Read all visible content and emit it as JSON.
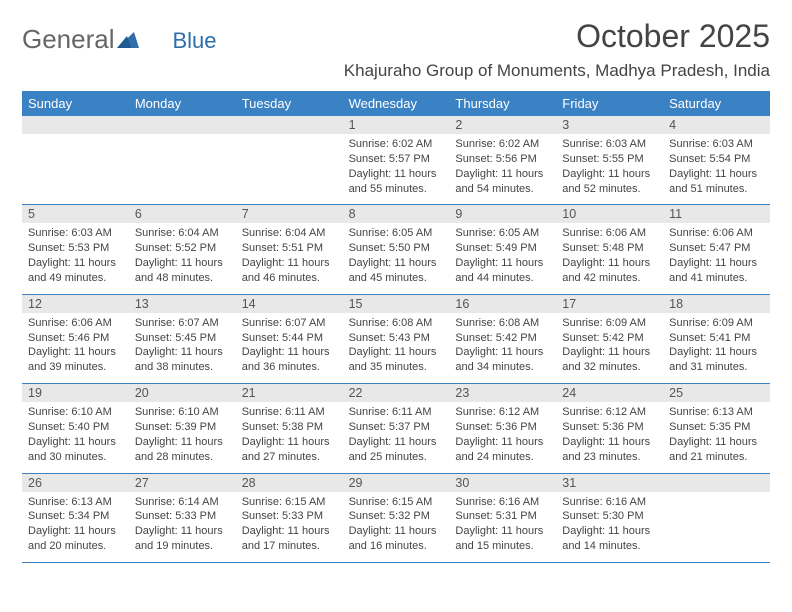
{
  "logo": {
    "part1": "General",
    "part2": "Blue"
  },
  "title": "October 2025",
  "location": "Khajuraho Group of Monuments, Madhya Pradesh, India",
  "colors": {
    "header_bg": "#3a82c4",
    "header_text": "#ffffff",
    "date_bg": "#e8e8e8",
    "rule": "#3a82c4",
    "text": "#3a3a3a",
    "logo_blue": "#2f6ea8"
  },
  "day_labels": [
    "Sunday",
    "Monday",
    "Tuesday",
    "Wednesday",
    "Thursday",
    "Friday",
    "Saturday"
  ],
  "weeks": [
    [
      {
        "blank": true
      },
      {
        "blank": true
      },
      {
        "blank": true
      },
      {
        "d": "1",
        "sr": "6:02 AM",
        "ss": "5:57 PM",
        "dlh": "11",
        "dlm": "55"
      },
      {
        "d": "2",
        "sr": "6:02 AM",
        "ss": "5:56 PM",
        "dlh": "11",
        "dlm": "54"
      },
      {
        "d": "3",
        "sr": "6:03 AM",
        "ss": "5:55 PM",
        "dlh": "11",
        "dlm": "52"
      },
      {
        "d": "4",
        "sr": "6:03 AM",
        "ss": "5:54 PM",
        "dlh": "11",
        "dlm": "51"
      }
    ],
    [
      {
        "d": "5",
        "sr": "6:03 AM",
        "ss": "5:53 PM",
        "dlh": "11",
        "dlm": "49"
      },
      {
        "d": "6",
        "sr": "6:04 AM",
        "ss": "5:52 PM",
        "dlh": "11",
        "dlm": "48"
      },
      {
        "d": "7",
        "sr": "6:04 AM",
        "ss": "5:51 PM",
        "dlh": "11",
        "dlm": "46"
      },
      {
        "d": "8",
        "sr": "6:05 AM",
        "ss": "5:50 PM",
        "dlh": "11",
        "dlm": "45"
      },
      {
        "d": "9",
        "sr": "6:05 AM",
        "ss": "5:49 PM",
        "dlh": "11",
        "dlm": "44"
      },
      {
        "d": "10",
        "sr": "6:06 AM",
        "ss": "5:48 PM",
        "dlh": "11",
        "dlm": "42"
      },
      {
        "d": "11",
        "sr": "6:06 AM",
        "ss": "5:47 PM",
        "dlh": "11",
        "dlm": "41"
      }
    ],
    [
      {
        "d": "12",
        "sr": "6:06 AM",
        "ss": "5:46 PM",
        "dlh": "11",
        "dlm": "39"
      },
      {
        "d": "13",
        "sr": "6:07 AM",
        "ss": "5:45 PM",
        "dlh": "11",
        "dlm": "38"
      },
      {
        "d": "14",
        "sr": "6:07 AM",
        "ss": "5:44 PM",
        "dlh": "11",
        "dlm": "36"
      },
      {
        "d": "15",
        "sr": "6:08 AM",
        "ss": "5:43 PM",
        "dlh": "11",
        "dlm": "35"
      },
      {
        "d": "16",
        "sr": "6:08 AM",
        "ss": "5:42 PM",
        "dlh": "11",
        "dlm": "34"
      },
      {
        "d": "17",
        "sr": "6:09 AM",
        "ss": "5:42 PM",
        "dlh": "11",
        "dlm": "32"
      },
      {
        "d": "18",
        "sr": "6:09 AM",
        "ss": "5:41 PM",
        "dlh": "11",
        "dlm": "31"
      }
    ],
    [
      {
        "d": "19",
        "sr": "6:10 AM",
        "ss": "5:40 PM",
        "dlh": "11",
        "dlm": "30"
      },
      {
        "d": "20",
        "sr": "6:10 AM",
        "ss": "5:39 PM",
        "dlh": "11",
        "dlm": "28"
      },
      {
        "d": "21",
        "sr": "6:11 AM",
        "ss": "5:38 PM",
        "dlh": "11",
        "dlm": "27"
      },
      {
        "d": "22",
        "sr": "6:11 AM",
        "ss": "5:37 PM",
        "dlh": "11",
        "dlm": "25"
      },
      {
        "d": "23",
        "sr": "6:12 AM",
        "ss": "5:36 PM",
        "dlh": "11",
        "dlm": "24"
      },
      {
        "d": "24",
        "sr": "6:12 AM",
        "ss": "5:36 PM",
        "dlh": "11",
        "dlm": "23"
      },
      {
        "d": "25",
        "sr": "6:13 AM",
        "ss": "5:35 PM",
        "dlh": "11",
        "dlm": "21"
      }
    ],
    [
      {
        "d": "26",
        "sr": "6:13 AM",
        "ss": "5:34 PM",
        "dlh": "11",
        "dlm": "20"
      },
      {
        "d": "27",
        "sr": "6:14 AM",
        "ss": "5:33 PM",
        "dlh": "11",
        "dlm": "19"
      },
      {
        "d": "28",
        "sr": "6:15 AM",
        "ss": "5:33 PM",
        "dlh": "11",
        "dlm": "17"
      },
      {
        "d": "29",
        "sr": "6:15 AM",
        "ss": "5:32 PM",
        "dlh": "11",
        "dlm": "16"
      },
      {
        "d": "30",
        "sr": "6:16 AM",
        "ss": "5:31 PM",
        "dlh": "11",
        "dlm": "15"
      },
      {
        "d": "31",
        "sr": "6:16 AM",
        "ss": "5:30 PM",
        "dlh": "11",
        "dlm": "14"
      },
      {
        "blank": true
      }
    ]
  ],
  "labels": {
    "sunrise": "Sunrise:",
    "sunset": "Sunset:",
    "daylight1": "Daylight:",
    "hours": "hours",
    "and": "and",
    "minutes": "minutes."
  }
}
